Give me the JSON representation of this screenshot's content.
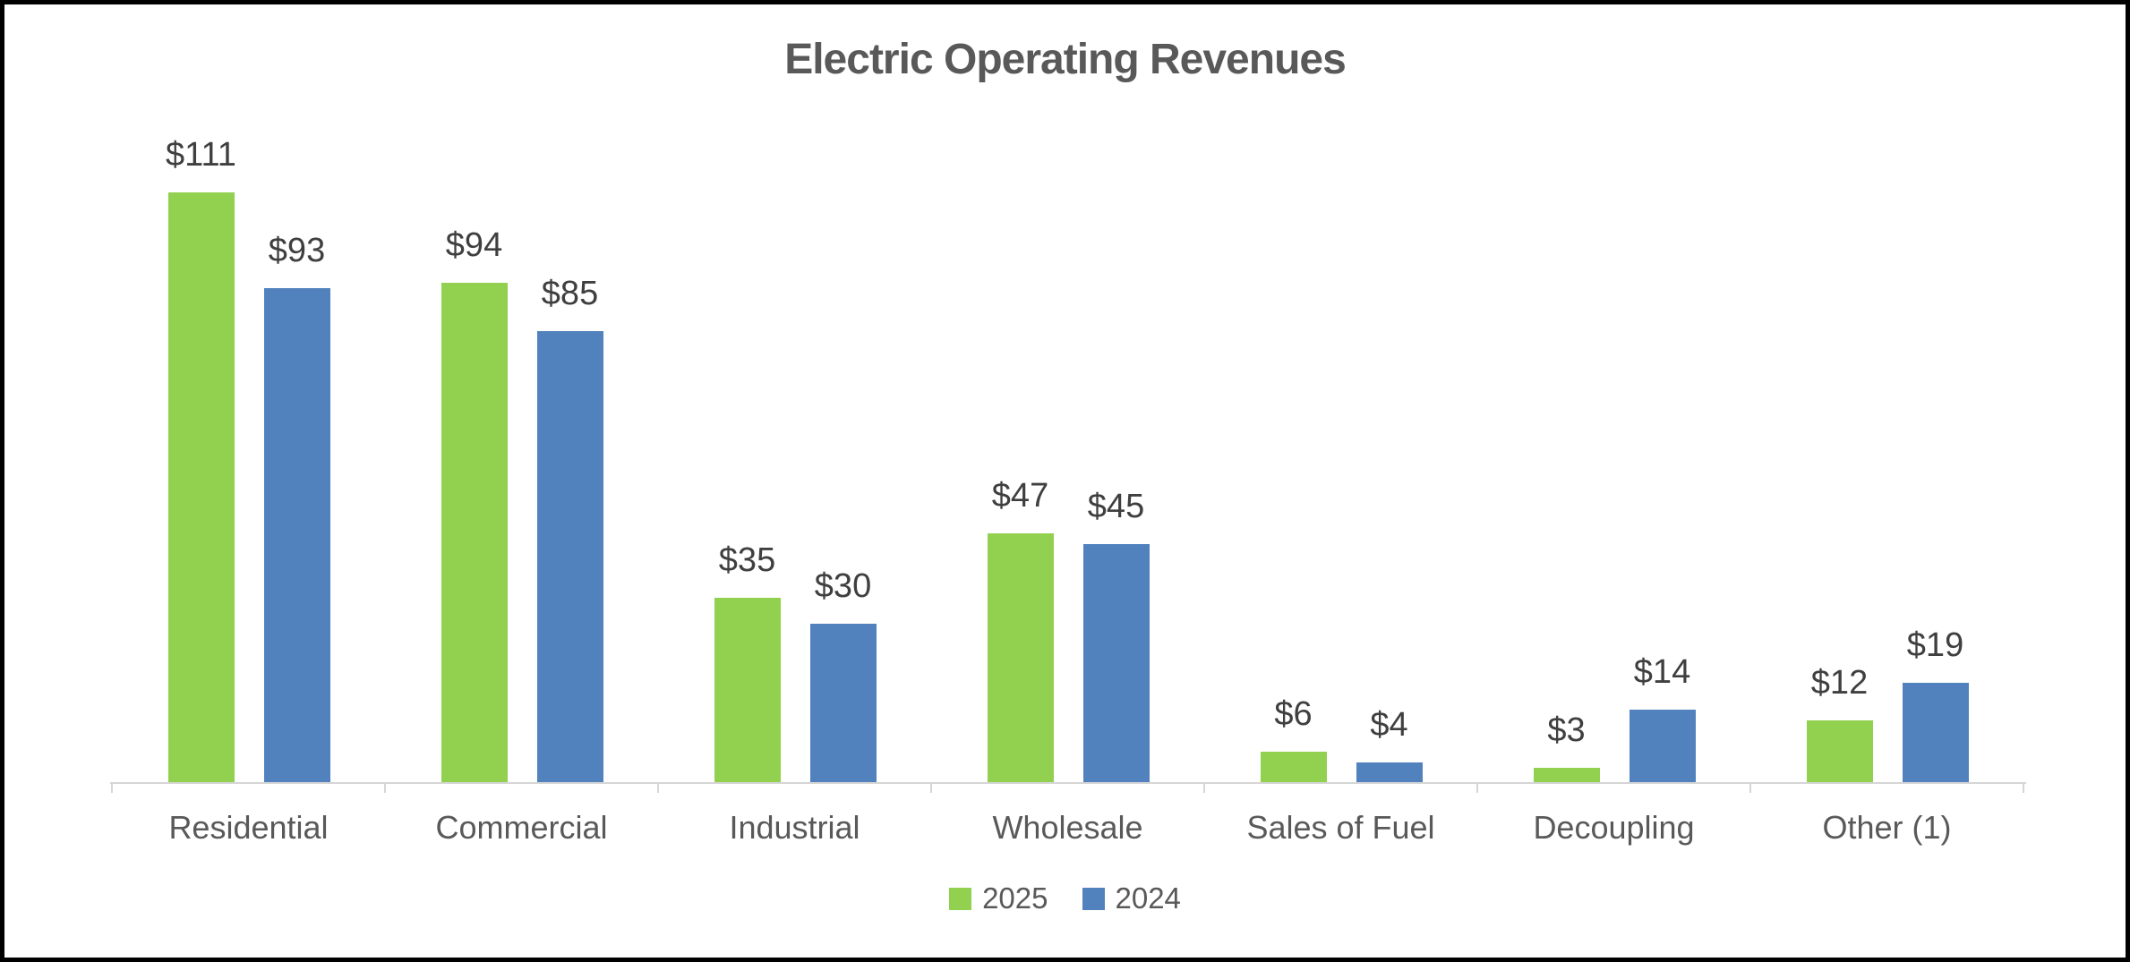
{
  "window": {
    "background_color": "#FFFFFF",
    "border_color": "#000000"
  },
  "chart_data": {
    "type": "bar",
    "title": "Electric Operating Revenues",
    "categories": [
      "Residential",
      "Commercial",
      "Industrial",
      "Wholesale",
      "Sales of Fuel",
      "Decoupling",
      "Other (1)"
    ],
    "series": [
      {
        "name": "2025",
        "color": "#92D050",
        "values": [
          111,
          94,
          35,
          47,
          6,
          3,
          12
        ],
        "data_labels": [
          "$111",
          "$94",
          "$35",
          "$47",
          "$6",
          "$3",
          "$12"
        ]
      },
      {
        "name": "2024",
        "color": "#5182BE",
        "values": [
          93,
          85,
          30,
          45,
          4,
          14,
          19
        ],
        "data_labels": [
          "$93",
          "$85",
          "$30",
          "$45",
          "$4",
          "$14",
          "$19"
        ]
      }
    ],
    "value_prefix": "$",
    "ylim": [
      0,
      120
    ],
    "grid": false,
    "y_axis_visible": false,
    "data_labels_visible": true,
    "legend_position": "bottom",
    "title_color": "#595959",
    "data_label_color": "#3F3F3F",
    "category_label_color": "#595959",
    "axis_line_color": "#D6D6D6"
  }
}
